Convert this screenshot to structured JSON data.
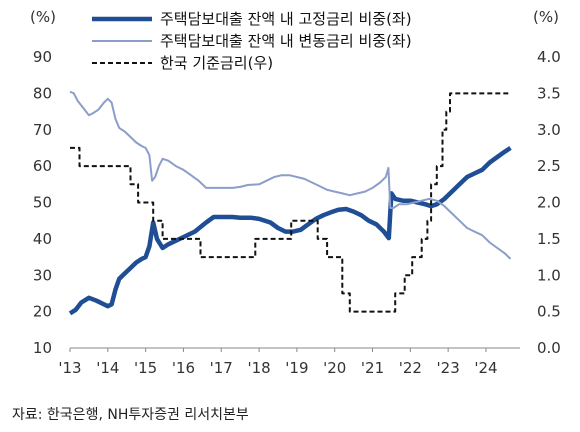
{
  "chart_data": {
    "type": "line",
    "left_unit": "(%)",
    "right_unit": "(%)",
    "left_axis": {
      "min": 10,
      "max": 90,
      "ticks": [
        10,
        20,
        30,
        40,
        50,
        60,
        70,
        80,
        90
      ]
    },
    "right_axis": {
      "min": 0.0,
      "max": 4.0,
      "ticks": [
        "0.0",
        "0.5",
        "1.0",
        "1.5",
        "2.0",
        "2.5",
        "3.0",
        "3.5",
        "4.0"
      ]
    },
    "x_axis": {
      "min": 2013.0,
      "max": 2024.9,
      "ticks": [
        {
          "v": 2013,
          "label": "'13"
        },
        {
          "v": 2014,
          "label": "'14"
        },
        {
          "v": 2015,
          "label": "'15"
        },
        {
          "v": 2016,
          "label": "'16"
        },
        {
          "v": 2017,
          "label": "'17"
        },
        {
          "v": 2018,
          "label": "'18"
        },
        {
          "v": 2019,
          "label": "'19"
        },
        {
          "v": 2020,
          "label": "'20"
        },
        {
          "v": 2021,
          "label": "'21"
        },
        {
          "v": 2022,
          "label": "'22"
        },
        {
          "v": 2023,
          "label": "'23"
        },
        {
          "v": 2024,
          "label": "'24"
        }
      ]
    },
    "legend_placement": "top-right",
    "series": [
      {
        "name": "주택담보대출 잔액 내 고정금리 비중(좌)",
        "axis": "left",
        "color": "#1f4e94",
        "style": "thick",
        "points": [
          [
            2013.0,
            19.5
          ],
          [
            2013.15,
            20.5
          ],
          [
            2013.3,
            22.5
          ],
          [
            2013.5,
            23.8
          ],
          [
            2013.7,
            23
          ],
          [
            2013.9,
            22
          ],
          [
            2014.0,
            21.5
          ],
          [
            2014.1,
            22
          ],
          [
            2014.2,
            26
          ],
          [
            2014.3,
            29
          ],
          [
            2014.45,
            30.5
          ],
          [
            2014.6,
            32
          ],
          [
            2014.75,
            33.5
          ],
          [
            2014.9,
            34.5
          ],
          [
            2015.0,
            35
          ],
          [
            2015.1,
            38
          ],
          [
            2015.2,
            44.5
          ],
          [
            2015.3,
            40
          ],
          [
            2015.45,
            37.5
          ],
          [
            2015.6,
            38.5
          ],
          [
            2015.8,
            39.5
          ],
          [
            2016.0,
            40.5
          ],
          [
            2016.3,
            42
          ],
          [
            2016.6,
            44.5
          ],
          [
            2016.8,
            46
          ],
          [
            2017.0,
            46
          ],
          [
            2017.3,
            46
          ],
          [
            2017.5,
            45.8
          ],
          [
            2017.8,
            45.8
          ],
          [
            2018.0,
            45.5
          ],
          [
            2018.3,
            44.5
          ],
          [
            2018.5,
            43
          ],
          [
            2018.7,
            42
          ],
          [
            2018.9,
            42
          ],
          [
            2019.1,
            42.5
          ],
          [
            2019.3,
            44
          ],
          [
            2019.5,
            45.5
          ],
          [
            2019.7,
            46.5
          ],
          [
            2019.9,
            47.3
          ],
          [
            2020.1,
            48
          ],
          [
            2020.3,
            48.2
          ],
          [
            2020.5,
            47.5
          ],
          [
            2020.7,
            46.5
          ],
          [
            2020.9,
            45
          ],
          [
            2021.1,
            44
          ],
          [
            2021.3,
            42
          ],
          [
            2021.43,
            40.2
          ],
          [
            2021.5,
            52.5
          ],
          [
            2021.6,
            51
          ],
          [
            2021.8,
            50.5
          ],
          [
            2022.0,
            50.5
          ],
          [
            2022.2,
            50
          ],
          [
            2022.4,
            49.5
          ],
          [
            2022.55,
            49
          ],
          [
            2022.7,
            49.5
          ],
          [
            2022.9,
            51
          ],
          [
            2023.1,
            53
          ],
          [
            2023.3,
            55
          ],
          [
            2023.5,
            57
          ],
          [
            2023.7,
            58
          ],
          [
            2023.9,
            59
          ],
          [
            2024.1,
            61
          ],
          [
            2024.3,
            62.5
          ],
          [
            2024.5,
            64
          ],
          [
            2024.65,
            65
          ]
        ]
      },
      {
        "name": "주택담보대출 잔액 내 변동금리 비중(좌)",
        "axis": "left",
        "color": "#8b9dc9",
        "style": "thin",
        "points": [
          [
            2013.0,
            80.5
          ],
          [
            2013.1,
            80
          ],
          [
            2013.2,
            78
          ],
          [
            2013.35,
            76
          ],
          [
            2013.5,
            74
          ],
          [
            2013.6,
            74.5
          ],
          [
            2013.75,
            75.5
          ],
          [
            2013.9,
            77.5
          ],
          [
            2014.0,
            78.5
          ],
          [
            2014.1,
            77.5
          ],
          [
            2014.2,
            73
          ],
          [
            2014.3,
            70.5
          ],
          [
            2014.45,
            69.5
          ],
          [
            2014.6,
            68
          ],
          [
            2014.75,
            66.5
          ],
          [
            2014.9,
            65.5
          ],
          [
            2015.0,
            65
          ],
          [
            2015.1,
            63
          ],
          [
            2015.17,
            56
          ],
          [
            2015.25,
            57
          ],
          [
            2015.35,
            60
          ],
          [
            2015.45,
            62
          ],
          [
            2015.6,
            61.5
          ],
          [
            2015.8,
            60
          ],
          [
            2016.0,
            59
          ],
          [
            2016.2,
            57.5
          ],
          [
            2016.4,
            56
          ],
          [
            2016.6,
            54
          ],
          [
            2016.8,
            54
          ],
          [
            2017.0,
            54
          ],
          [
            2017.3,
            54
          ],
          [
            2017.5,
            54.3
          ],
          [
            2017.7,
            54.8
          ],
          [
            2018.0,
            55
          ],
          [
            2018.2,
            56
          ],
          [
            2018.4,
            57
          ],
          [
            2018.6,
            57.5
          ],
          [
            2018.8,
            57.5
          ],
          [
            2019.0,
            57
          ],
          [
            2019.2,
            56.5
          ],
          [
            2019.4,
            55.5
          ],
          [
            2019.6,
            54.5
          ],
          [
            2019.8,
            53.5
          ],
          [
            2020.0,
            53
          ],
          [
            2020.2,
            52.5
          ],
          [
            2020.4,
            52
          ],
          [
            2020.6,
            52.5
          ],
          [
            2020.8,
            53
          ],
          [
            2021.0,
            54
          ],
          [
            2021.2,
            55.5
          ],
          [
            2021.35,
            57
          ],
          [
            2021.42,
            59.5
          ],
          [
            2021.47,
            48.5
          ],
          [
            2021.55,
            48.5
          ],
          [
            2021.7,
            49.5
          ],
          [
            2021.9,
            49.5
          ],
          [
            2022.1,
            50
          ],
          [
            2022.3,
            50.5
          ],
          [
            2022.5,
            51
          ],
          [
            2022.7,
            50.5
          ],
          [
            2022.9,
            49
          ],
          [
            2023.1,
            47
          ],
          [
            2023.3,
            45
          ],
          [
            2023.5,
            43
          ],
          [
            2023.7,
            42
          ],
          [
            2023.9,
            41
          ],
          [
            2024.1,
            39
          ],
          [
            2024.3,
            37.5
          ],
          [
            2024.5,
            36
          ],
          [
            2024.65,
            34.5
          ]
        ]
      },
      {
        "name": "한국 기준금리(우)",
        "axis": "right",
        "color": "#111111",
        "style": "dashed",
        "points": [
          [
            2013.0,
            2.75
          ],
          [
            2013.25,
            2.75
          ],
          [
            2013.25,
            2.5
          ],
          [
            2014.6,
            2.5
          ],
          [
            2014.6,
            2.25
          ],
          [
            2014.8,
            2.25
          ],
          [
            2014.8,
            2.0
          ],
          [
            2015.2,
            2.0
          ],
          [
            2015.2,
            1.75
          ],
          [
            2015.45,
            1.75
          ],
          [
            2015.45,
            1.5
          ],
          [
            2016.45,
            1.5
          ],
          [
            2016.45,
            1.25
          ],
          [
            2017.9,
            1.25
          ],
          [
            2017.9,
            1.5
          ],
          [
            2018.85,
            1.5
          ],
          [
            2018.85,
            1.75
          ],
          [
            2019.55,
            1.75
          ],
          [
            2019.55,
            1.5
          ],
          [
            2019.8,
            1.5
          ],
          [
            2019.8,
            1.25
          ],
          [
            2020.2,
            1.25
          ],
          [
            2020.2,
            0.75
          ],
          [
            2020.4,
            0.75
          ],
          [
            2020.4,
            0.5
          ],
          [
            2021.6,
            0.5
          ],
          [
            2021.6,
            0.75
          ],
          [
            2021.85,
            0.75
          ],
          [
            2021.85,
            1.0
          ],
          [
            2022.05,
            1.0
          ],
          [
            2022.05,
            1.25
          ],
          [
            2022.3,
            1.25
          ],
          [
            2022.3,
            1.5
          ],
          [
            2022.45,
            1.5
          ],
          [
            2022.45,
            1.75
          ],
          [
            2022.55,
            1.75
          ],
          [
            2022.55,
            2.25
          ],
          [
            2022.7,
            2.25
          ],
          [
            2022.7,
            2.5
          ],
          [
            2022.85,
            2.5
          ],
          [
            2022.85,
            3.0
          ],
          [
            2022.95,
            3.0
          ],
          [
            2022.95,
            3.25
          ],
          [
            2023.05,
            3.25
          ],
          [
            2023.05,
            3.5
          ],
          [
            2024.65,
            3.5
          ]
        ]
      }
    ]
  },
  "source": "자료: 한국은행, NH투자증권 리서치본부"
}
